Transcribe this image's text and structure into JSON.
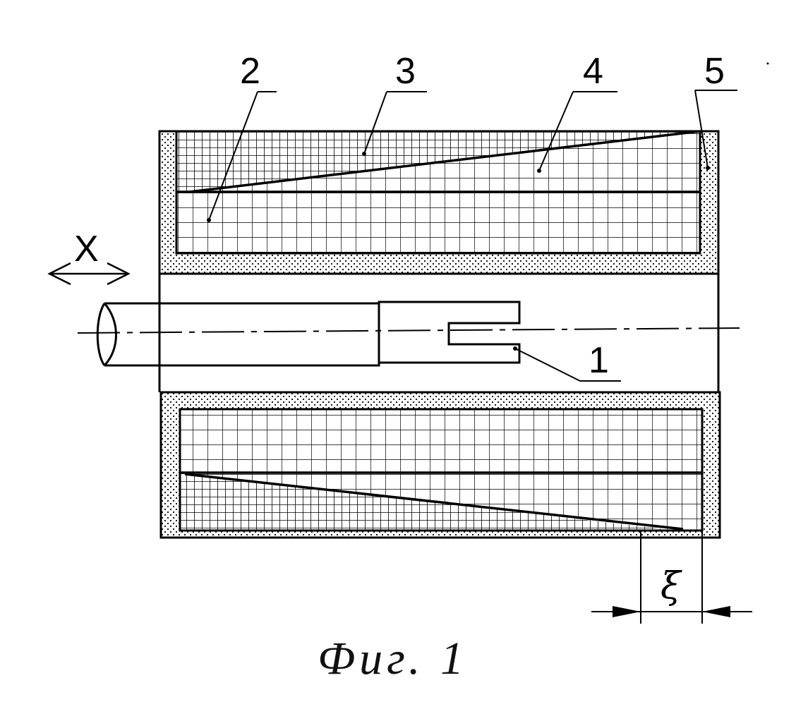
{
  "figure": {
    "caption": "Фиг. 1",
    "axis_label": "X",
    "gap_label": "ξ",
    "labels": [
      "1",
      "2",
      "3",
      "4",
      "5"
    ]
  },
  "colors": {
    "ink": "#000000",
    "paper": "#ffffff"
  }
}
